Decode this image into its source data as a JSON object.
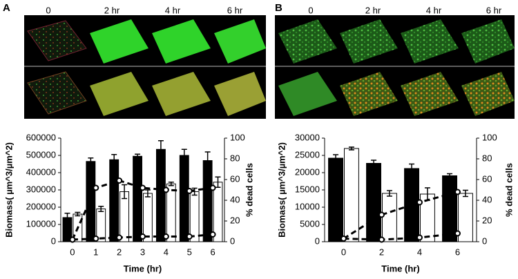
{
  "image_panels": [
    {
      "label": "A",
      "columns": [
        "0",
        "2 hr",
        "4 hr",
        "6 hr"
      ]
    },
    {
      "label": "B",
      "columns": [
        "0",
        "2 hr",
        "4 hr",
        "6 hr"
      ]
    }
  ],
  "chart_data": [
    {
      "type": "bar",
      "x_label": "Time (hr)",
      "y_label": "Biomass( µm^3/µm^2)",
      "y2_label": "% dead cells",
      "categories": [
        "0",
        "1",
        "2",
        "3",
        "4",
        "5",
        "6"
      ],
      "ylim": [
        0,
        600000
      ],
      "yticks": [
        0,
        100000,
        200000,
        300000,
        400000,
        500000,
        600000
      ],
      "y2lim": [
        0,
        100
      ],
      "y2ticks": [
        0,
        20,
        40,
        60,
        80,
        100
      ],
      "series": [
        {
          "type": "bar",
          "color": "#000000",
          "values": [
            140000,
            465000,
            475000,
            495000,
            535000,
            500000,
            470000
          ],
          "errors": [
            25000,
            20000,
            30000,
            12000,
            50000,
            35000,
            50000
          ]
        },
        {
          "type": "bar",
          "color": "#ffffff",
          "values": [
            160000,
            190000,
            290000,
            280000,
            335000,
            290000,
            345000
          ],
          "errors": [
            10000,
            15000,
            40000,
            20000,
            10000,
            20000,
            30000
          ]
        },
        {
          "type": "line",
          "axis": "y2",
          "color": "#000000",
          "line_style": "dashed",
          "values": [
            2,
            52,
            59,
            52,
            50,
            49,
            52
          ]
        },
        {
          "type": "line",
          "axis": "y2",
          "color": "#000000",
          "line_style": "dashed",
          "values": [
            2,
            3,
            4,
            5,
            5,
            5,
            7
          ]
        }
      ]
    },
    {
      "type": "bar",
      "x_label": "Time (hr)",
      "y_label": "Biomass( µm^3/µm^2)",
      "y2_label": "% dead cells",
      "categories": [
        "0",
        "2",
        "4",
        "6"
      ],
      "ylim": [
        0,
        30000
      ],
      "yticks": [
        0,
        5000,
        10000,
        15000,
        20000,
        25000,
        30000
      ],
      "y2lim": [
        0,
        100
      ],
      "y2ticks": [
        0,
        20,
        40,
        60,
        80,
        100
      ],
      "series": [
        {
          "type": "bar",
          "color": "#000000",
          "values": [
            24200,
            22700,
            21200,
            19100
          ],
          "errors": [
            1000,
            900,
            1300,
            600
          ]
        },
        {
          "type": "bar",
          "color": "#ffffff",
          "values": [
            27000,
            14000,
            13800,
            14000
          ],
          "errors": [
            400,
            800,
            1800,
            900
          ]
        },
        {
          "type": "line",
          "axis": "y2",
          "color": "#000000",
          "line_style": "dashed",
          "values": [
            3,
            26,
            38,
            48
          ]
        },
        {
          "type": "line",
          "axis": "y2",
          "color": "#000000",
          "line_style": "dashed",
          "values": [
            3,
            2,
            4,
            8
          ]
        }
      ]
    }
  ]
}
